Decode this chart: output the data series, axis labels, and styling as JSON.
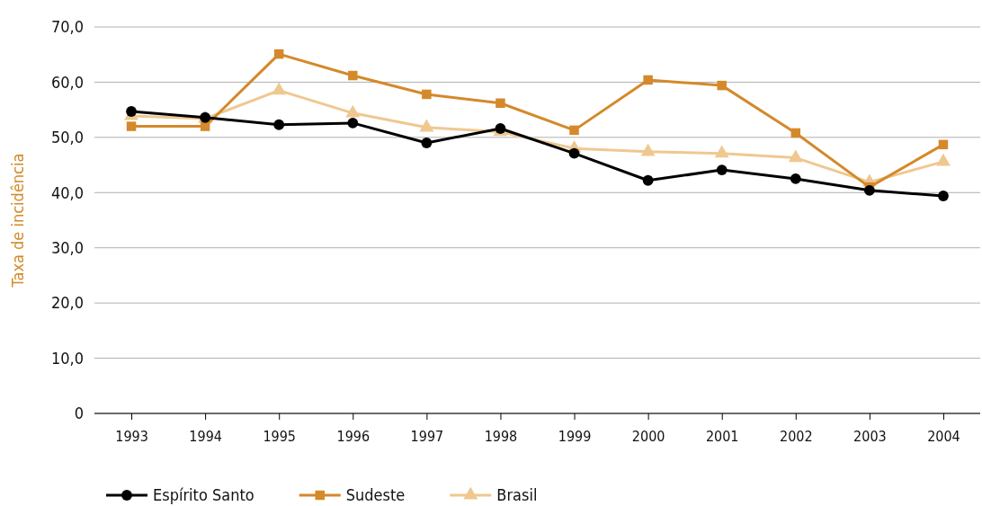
{
  "chart_data": {
    "type": "line",
    "ylabel": "Taxa de incidência",
    "categories": [
      "1993",
      "1994",
      "1995",
      "1996",
      "1997",
      "1998",
      "1999",
      "2000",
      "2001",
      "2002",
      "2003",
      "2004"
    ],
    "series": [
      {
        "name": "Espírito Santo",
        "color": "#000000",
        "marker": "circle",
        "values": [
          54.7,
          53.6,
          52.3,
          52.6,
          49.0,
          51.6,
          47.1,
          42.2,
          44.1,
          42.5,
          40.4,
          39.4
        ]
      },
      {
        "name": "Sudeste",
        "color": "#d4892a",
        "marker": "square",
        "values": [
          52.0,
          52.0,
          65.1,
          61.2,
          57.8,
          56.2,
          51.3,
          60.4,
          59.4,
          50.8,
          41.0,
          48.7
        ]
      },
      {
        "name": "Brasil",
        "color": "#efc890",
        "marker": "triangle",
        "values": [
          53.9,
          53.4,
          58.5,
          54.4,
          51.8,
          51.0,
          48.0,
          47.4,
          47.1,
          46.3,
          41.9,
          45.6
        ]
      }
    ],
    "ylim": [
      0,
      70
    ],
    "yticks": [
      {
        "value": 0,
        "label": "0"
      },
      {
        "value": 10,
        "label": "10,0"
      },
      {
        "value": 20,
        "label": "20,0"
      },
      {
        "value": 30,
        "label": "30,0"
      },
      {
        "value": 40,
        "label": "40,0"
      },
      {
        "value": 50,
        "label": "50,0"
      },
      {
        "value": 60,
        "label": "60,0"
      },
      {
        "value": 70,
        "label": "70,0"
      }
    ],
    "grid": "y",
    "legend": "bottom left",
    "line_style": "solid"
  }
}
